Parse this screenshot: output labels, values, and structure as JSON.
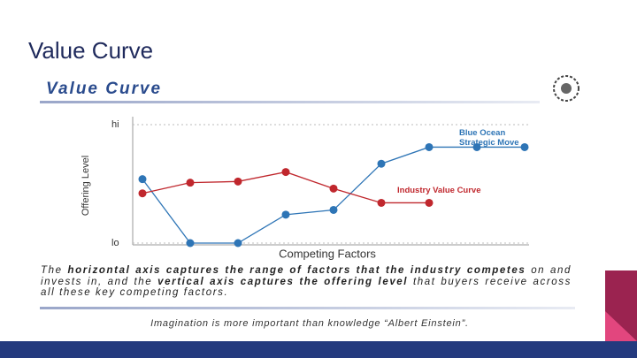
{
  "slide_title": "Value Curve",
  "chart_data": {
    "type": "line",
    "title": "Value Curve",
    "y_label": "Offering Level",
    "x_label": "Competing Factors",
    "categories": [
      null,
      null,
      null,
      null,
      null,
      null,
      null,
      null,
      null
    ],
    "series": [
      {
        "name": "Blue Ocean Strategic Move",
        "color": "#2e75b6",
        "values": [
          5.4,
          0,
          0,
          2.4,
          2.8,
          6.7,
          8.1,
          8.1,
          8.1
        ]
      },
      {
        "name": "Industry Value Curve",
        "color": "#c0272d",
        "values": [
          4.2,
          5.1,
          5.2,
          6.0,
          4.6,
          3.4,
          3.4,
          null,
          null
        ]
      }
    ],
    "ylim": [
      0,
      10
    ],
    "yticks": [
      {
        "value": 0,
        "label": "lo"
      },
      {
        "value": 10,
        "label": "hi"
      }
    ],
    "grid": true
  },
  "caption": [
    {
      "text": "The ",
      "bold": false
    },
    {
      "text": "horizontal axis captures the range of factors that the industry competes",
      "bold": true
    },
    {
      "text": " on and invests in, and the ",
      "bold": false
    },
    {
      "text": "vertical axis captures the offering level",
      "bold": true
    },
    {
      "text": " that buyers receive across all these key competing factors.",
      "bold": false
    }
  ],
  "quote": "Imagination is more important than knowledge “Albert Einstein”."
}
